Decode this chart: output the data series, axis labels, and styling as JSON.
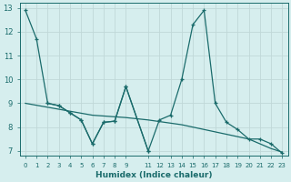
{
  "xlabel": "Humidex (Indice chaleur)",
  "bg_color": "#d6eeee",
  "grid_color": "#c0d8d8",
  "line_color": "#1a6b6b",
  "xlim": [
    -0.5,
    23.5
  ],
  "ylim": [
    6.8,
    13.2
  ],
  "yticks": [
    7,
    8,
    9,
    10,
    11,
    12,
    13
  ],
  "xtick_positions": [
    0,
    1,
    2,
    3,
    4,
    5,
    6,
    7,
    8,
    9,
    11,
    12,
    13,
    14,
    15,
    16,
    17,
    18,
    19,
    20,
    21,
    22,
    23
  ],
  "xtick_labels": [
    "0",
    "1",
    "2",
    "3",
    "4",
    "5",
    "6",
    "7",
    "8",
    "9",
    "11",
    "12",
    "13",
    "14",
    "15",
    "16",
    "17",
    "18",
    "19",
    "20",
    "21",
    "22",
    "23"
  ],
  "line1_x": [
    0,
    1,
    2,
    3,
    4,
    5,
    6,
    7,
    8,
    9,
    11
  ],
  "line1_y": [
    12.9,
    11.7,
    9.0,
    8.9,
    8.6,
    8.3,
    7.3,
    8.2,
    8.25,
    9.7,
    7.0
  ],
  "line2_x": [
    2,
    3,
    4,
    5,
    6,
    7,
    8,
    9,
    11,
    12,
    13,
    14,
    15,
    16,
    17,
    18,
    19,
    20,
    21,
    22,
    23
  ],
  "line2_y": [
    9.0,
    8.9,
    8.6,
    8.3,
    7.3,
    8.2,
    8.25,
    9.7,
    7.0,
    8.3,
    8.5,
    10.0,
    12.3,
    12.9,
    9.0,
    8.2,
    7.9,
    7.5,
    7.5,
    7.3,
    6.9
  ],
  "line3_x": [
    0,
    6,
    9,
    11,
    14,
    17,
    20,
    21,
    22,
    23
  ],
  "line3_y": [
    9.0,
    8.5,
    8.4,
    8.3,
    8.1,
    7.8,
    7.5,
    7.3,
    7.1,
    6.95
  ]
}
